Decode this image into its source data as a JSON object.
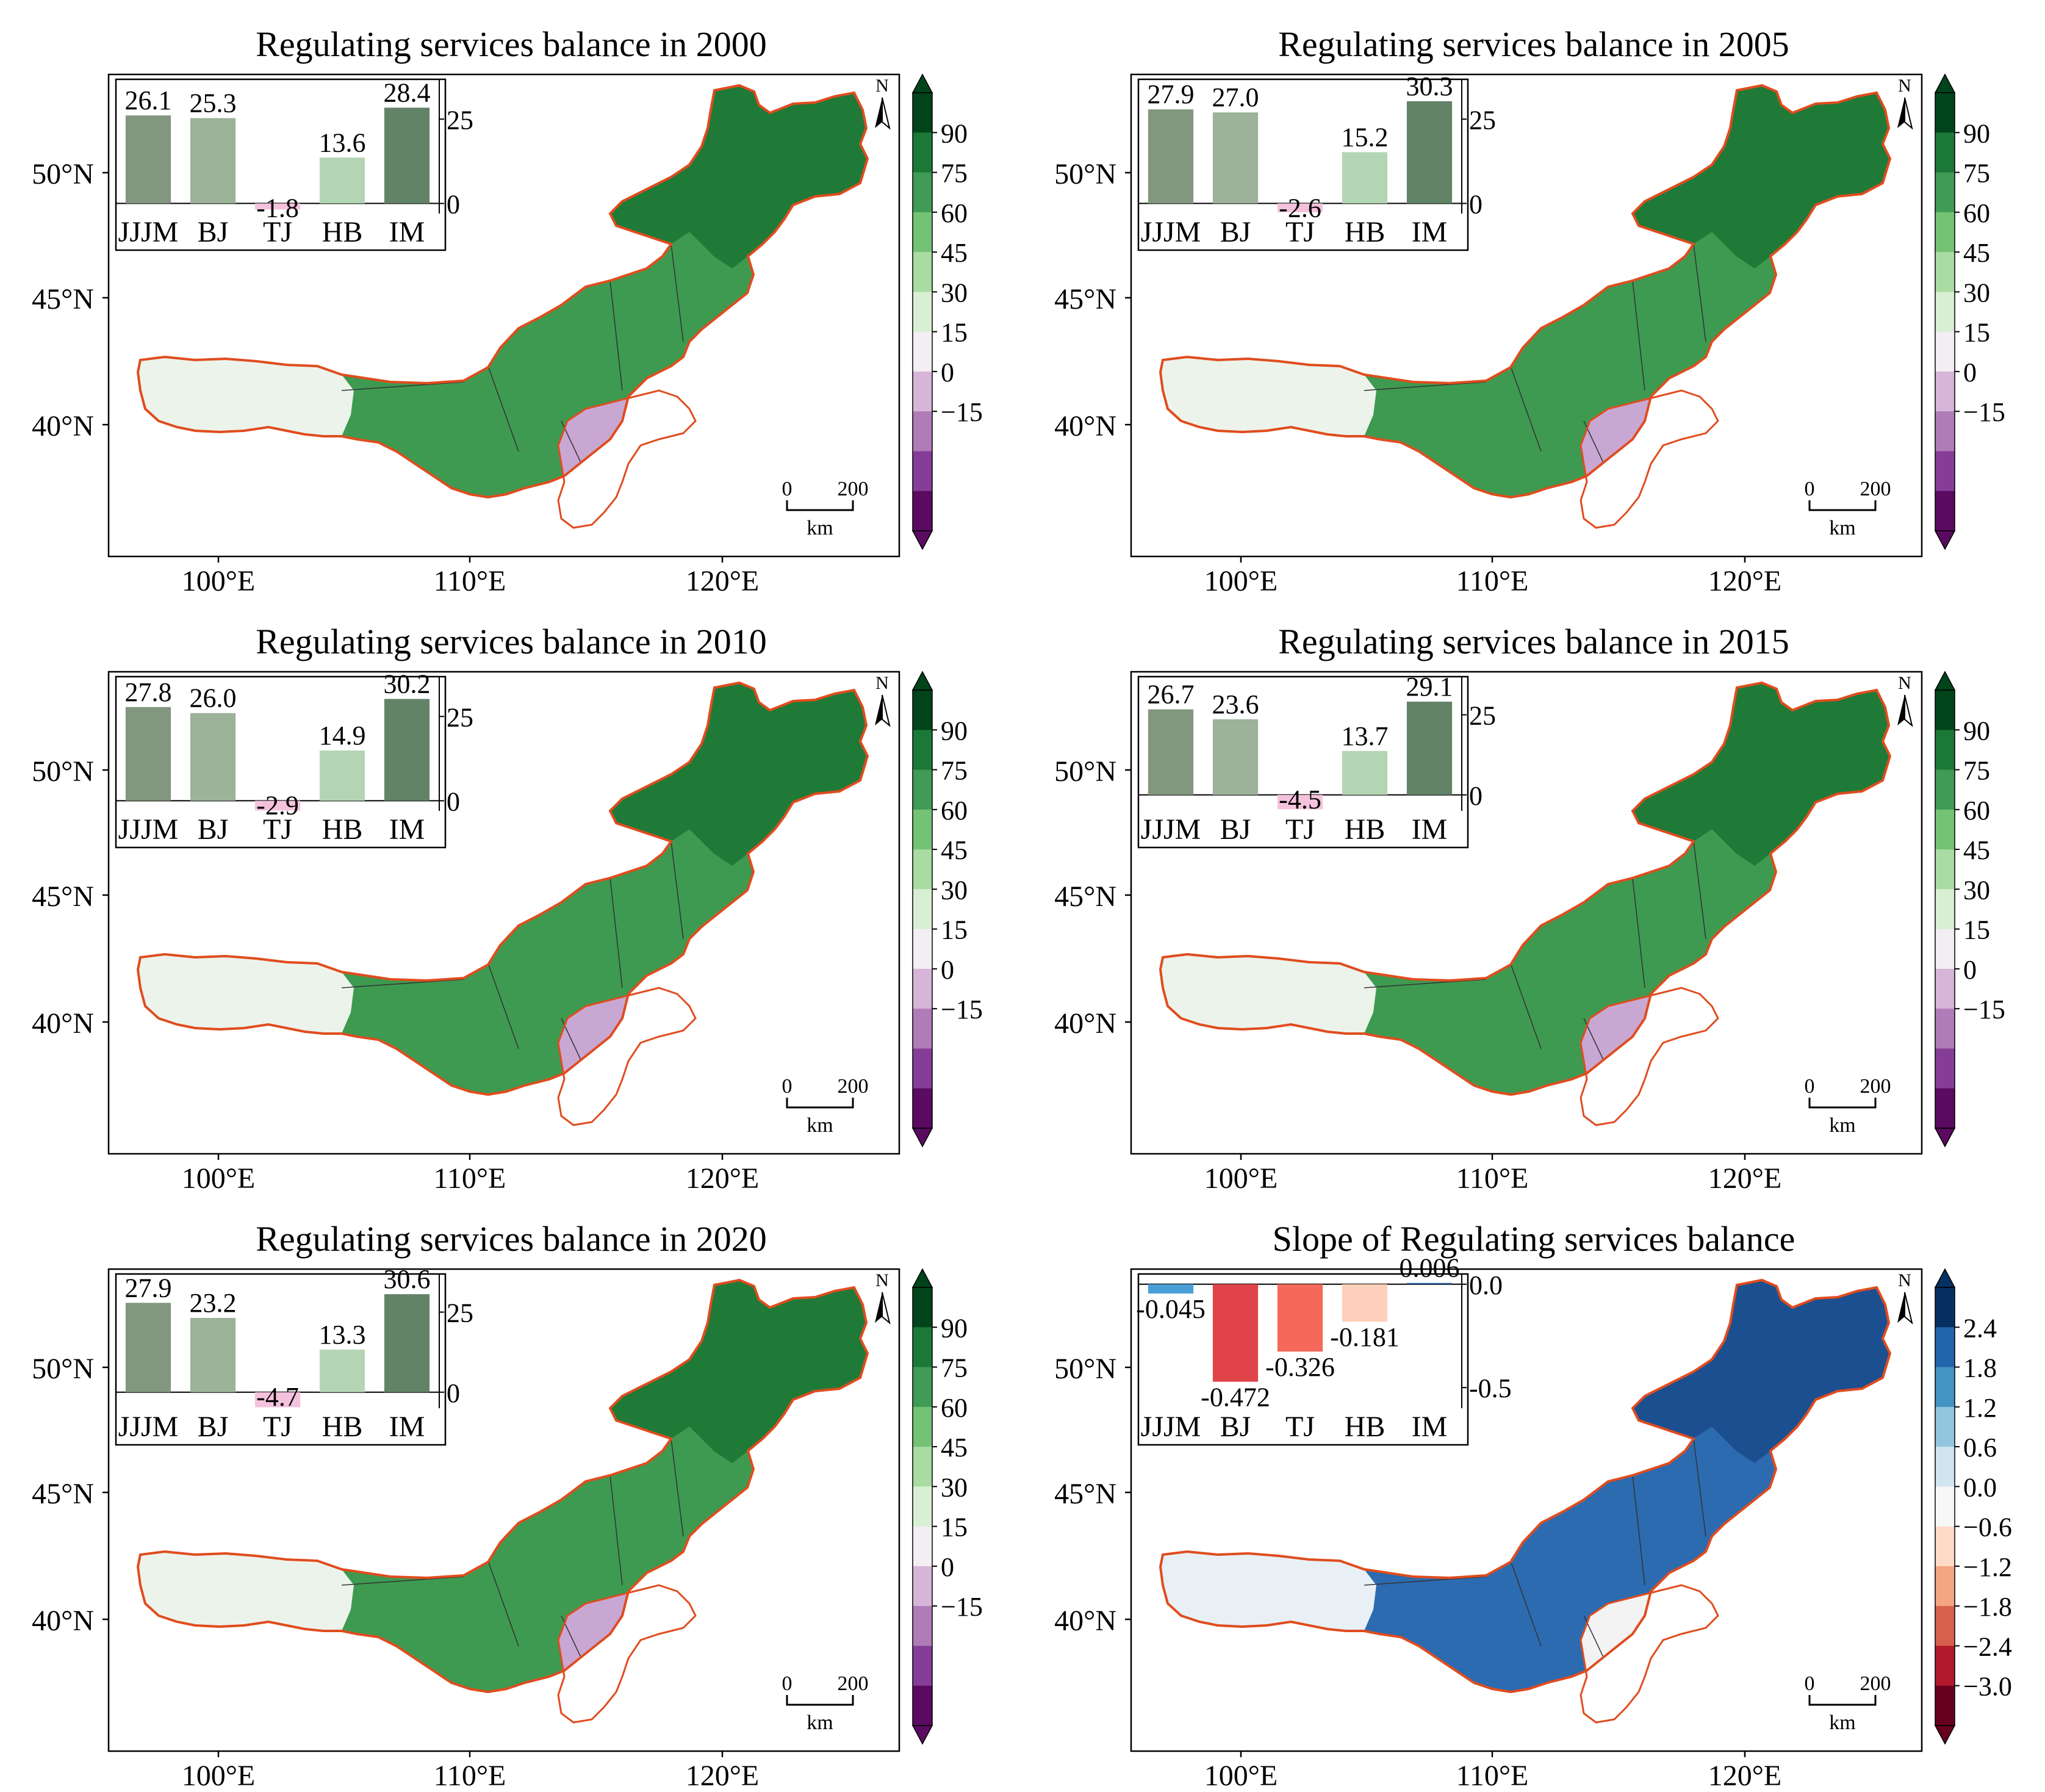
{
  "map_common": {
    "lat_labels": [
      "50°N",
      "45°N",
      "40°N"
    ],
    "lon_labels": [
      "100°E",
      "110°E",
      "120°E"
    ],
    "north_label": "N",
    "scale_zero": "0",
    "scale_value": "200",
    "scale_unit": "km",
    "region_fill_colors": {
      "north": "#1f7a37",
      "center": "#3e9a50",
      "west": "#ecf3ea",
      "south": "#c9a7d3"
    },
    "border_color": "#e04c1e"
  },
  "colorbars": {
    "balance": {
      "ticks": [
        "90",
        "75",
        "60",
        "45",
        "30",
        "15",
        "0",
        "−15"
      ],
      "colors": [
        "#00441b",
        "#1b7837",
        "#3f9b55",
        "#74c375",
        "#a9dba3",
        "#d9efd3",
        "#f3eef2",
        "#d7b5d8",
        "#b07cb8",
        "#863d97",
        "#5a0b61"
      ]
    },
    "slope": {
      "ticks": [
        "2.4",
        "1.8",
        "1.2",
        "0.6",
        "0.0",
        "−0.6",
        "−1.2",
        "−1.8",
        "−2.4",
        "−3.0"
      ],
      "colors": [
        "#053061",
        "#2166ac",
        "#4393c3",
        "#92c5de",
        "#d1e5f0",
        "#f7f7f7",
        "#fddbc7",
        "#f4a582",
        "#d6604d",
        "#b2182b",
        "#67001f"
      ]
    }
  },
  "panels": [
    {
      "title": "Regulating services balance in 2000",
      "chart_data": {
        "type": "bar",
        "categories": [
          "JJJM",
          "BJ",
          "TJ",
          "HB",
          "IM"
        ],
        "values": [
          26.1,
          25.3,
          -1.8,
          13.6,
          28.4
        ],
        "value_labels": [
          "26.1",
          "25.3",
          "-1.8",
          "13.6",
          "28.4"
        ],
        "yticks": [
          "25",
          "0"
        ],
        "ylim": [
          -3,
          35
        ],
        "colors": [
          "#82977e",
          "#9cb299",
          "#f4c2dc",
          "#b3d5b3",
          "#628368"
        ]
      }
    },
    {
      "title": "Regulating services balance in 2005",
      "chart_data": {
        "type": "bar",
        "categories": [
          "JJJM",
          "BJ",
          "TJ",
          "HB",
          "IM"
        ],
        "values": [
          27.9,
          27.0,
          -2.6,
          15.2,
          30.3
        ],
        "value_labels": [
          "27.9",
          "27.0",
          "-2.6",
          "15.2",
          "30.3"
        ],
        "yticks": [
          "25",
          "0"
        ],
        "ylim": [
          -3,
          35
        ],
        "colors": [
          "#82977e",
          "#9cb299",
          "#f4c2dc",
          "#b3d5b3",
          "#628368"
        ]
      }
    },
    {
      "title": "Regulating services balance in 2010",
      "chart_data": {
        "type": "bar",
        "categories": [
          "JJJM",
          "BJ",
          "TJ",
          "HB",
          "IM"
        ],
        "values": [
          27.8,
          26.0,
          -2.9,
          14.9,
          30.2
        ],
        "value_labels": [
          "27.8",
          "26.0",
          "-2.9",
          "14.9",
          "30.2"
        ],
        "yticks": [
          "25",
          "0"
        ],
        "ylim": [
          -3,
          35
        ],
        "colors": [
          "#82977e",
          "#9cb299",
          "#f4c2dc",
          "#b3d5b3",
          "#628368"
        ]
      }
    },
    {
      "title": "Regulating services balance in 2015",
      "chart_data": {
        "type": "bar",
        "categories": [
          "JJJM",
          "BJ",
          "TJ",
          "HB",
          "IM"
        ],
        "values": [
          26.7,
          23.6,
          -4.5,
          13.7,
          29.1
        ],
        "value_labels": [
          "26.7",
          "23.6",
          "-4.5",
          "13.7",
          "29.1"
        ],
        "yticks": [
          "25",
          "0"
        ],
        "ylim": [
          -5,
          35
        ],
        "colors": [
          "#82977e",
          "#9cb299",
          "#f4c2dc",
          "#b3d5b3",
          "#628368"
        ]
      }
    },
    {
      "title": "Regulating services balance in 2020",
      "chart_data": {
        "type": "bar",
        "categories": [
          "JJJM",
          "BJ",
          "TJ",
          "HB",
          "IM"
        ],
        "values": [
          27.9,
          23.2,
          -4.7,
          13.3,
          30.6
        ],
        "value_labels": [
          "27.9",
          "23.2",
          "-4.7",
          "13.3",
          "30.6"
        ],
        "yticks": [
          "25",
          "0"
        ],
        "ylim": [
          -5,
          35
        ],
        "colors": [
          "#82977e",
          "#9cb299",
          "#f4c2dc",
          "#b3d5b3",
          "#628368"
        ]
      }
    },
    {
      "title": "Slope of Regulating services balance",
      "chart_data": {
        "type": "bar",
        "categories": [
          "JJJM",
          "BJ",
          "TJ",
          "HB",
          "IM"
        ],
        "values": [
          -0.045,
          -0.472,
          -0.326,
          -0.181,
          0.006
        ],
        "value_labels": [
          "-0.045",
          "-0.472",
          "-0.326",
          "-0.181",
          "0.006"
        ],
        "yticks": [
          "0.0",
          "-0.5"
        ],
        "ytick_values": [
          0,
          -0.5
        ],
        "ylim": [
          -0.6,
          0.02
        ],
        "colors": [
          "#4a9fd6",
          "#e0444a",
          "#f4695a",
          "#fcd0bb",
          "#1d5aa3"
        ]
      }
    }
  ]
}
